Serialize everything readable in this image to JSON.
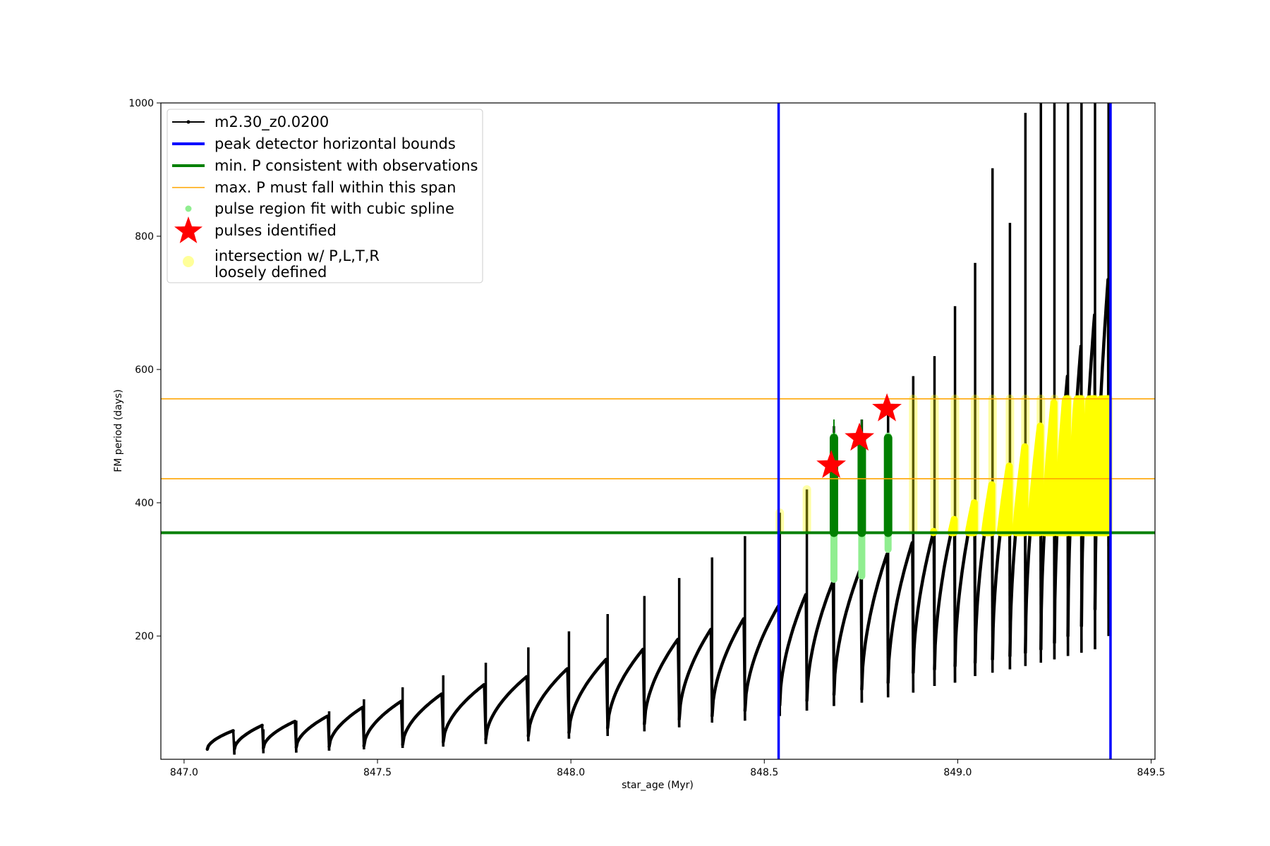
{
  "chart_data": {
    "type": "line",
    "title": "",
    "xlabel": "star_age (Myr)",
    "ylabel": "FM period (days)",
    "xlim": [
      846.94,
      849.51
    ],
    "ylim": [
      15,
      1000
    ],
    "xticks": [
      847.0,
      847.5,
      848.0,
      848.5,
      849.0,
      849.5
    ],
    "xtick_labels": [
      "847.0",
      "847.5",
      "848.0",
      "848.5",
      "849.0",
      "849.5"
    ],
    "yticks": [
      200,
      400,
      600,
      800,
      1000
    ],
    "ytick_labels": [
      "200",
      "400",
      "600",
      "800",
      "1000"
    ],
    "grid": false,
    "legend_position": "upper-left",
    "legend": [
      {
        "label": "m2.30_z0.0200",
        "style": "line-marker",
        "color": "#000000"
      },
      {
        "label": "peak detector horizontal bounds",
        "style": "thick-line",
        "color": "#0000ff"
      },
      {
        "label": "min. P consistent with observations",
        "style": "thick-line",
        "color": "#008000"
      },
      {
        "label": "max. P must fall within this span",
        "style": "thin-line",
        "color": "#ffa500"
      },
      {
        "label": "pulse region fit with cubic spline",
        "style": "dot",
        "color": "#90ee90"
      },
      {
        "label": "pulses identified",
        "style": "star",
        "color": "#ff0000"
      },
      {
        "label": "intersection w/ P,L,T,R",
        "label_line2": "loosely defined",
        "style": "big-dot",
        "color": "#ffff99"
      }
    ],
    "colors": {
      "main": "#000000",
      "bounds": "#0000ff",
      "min_p": "#008000",
      "max_p": "#ffa500",
      "spline": "#90ee90",
      "star": "#ff0000",
      "intersection": "#ffff00"
    },
    "vertical_bounds_x": [
      848.537,
      849.395
    ],
    "min_p": 355,
    "max_p_span": [
      436,
      556
    ],
    "pulses": [
      {
        "x0": 847.06,
        "x1": 847.13,
        "base": 30,
        "peak": 58,
        "spike": 42,
        "dip": 22
      },
      {
        "x0": 847.13,
        "x1": 847.205,
        "base": 30,
        "peak": 66,
        "spike": 60,
        "dip": 24
      },
      {
        "x0": 847.205,
        "x1": 847.29,
        "base": 32,
        "peak": 72,
        "spike": 73,
        "dip": 25
      },
      {
        "x0": 847.29,
        "x1": 847.375,
        "base": 33,
        "peak": 80,
        "spike": 87,
        "dip": 28
      },
      {
        "x0": 847.375,
        "x1": 847.465,
        "base": 34,
        "peak": 93,
        "spike": 105,
        "dip": 30
      },
      {
        "x0": 847.465,
        "x1": 847.565,
        "base": 35,
        "peak": 102,
        "spike": 123,
        "dip": 32
      },
      {
        "x0": 847.565,
        "x1": 847.67,
        "base": 37,
        "peak": 113,
        "spike": 141,
        "dip": 34
      },
      {
        "x0": 847.67,
        "x1": 847.78,
        "base": 41,
        "peak": 127,
        "spike": 160,
        "dip": 38
      },
      {
        "x0": 847.78,
        "x1": 847.89,
        "base": 45,
        "peak": 139,
        "spike": 183,
        "dip": 42
      },
      {
        "x0": 847.89,
        "x1": 847.995,
        "base": 50,
        "peak": 151,
        "spike": 207,
        "dip": 46
      },
      {
        "x0": 847.995,
        "x1": 848.095,
        "base": 55,
        "peak": 165,
        "spike": 233,
        "dip": 50
      },
      {
        "x0": 848.095,
        "x1": 848.19,
        "base": 62,
        "peak": 180,
        "spike": 260,
        "dip": 57
      },
      {
        "x0": 848.19,
        "x1": 848.28,
        "base": 68,
        "peak": 195,
        "spike": 287,
        "dip": 63
      },
      {
        "x0": 848.28,
        "x1": 848.365,
        "base": 75,
        "peak": 210,
        "spike": 318,
        "dip": 70
      },
      {
        "x0": 848.365,
        "x1": 848.45,
        "base": 80,
        "peak": 226,
        "spike": 350,
        "dip": 73
      },
      {
        "x0": 848.45,
        "x1": 848.54,
        "base": 88,
        "peak": 245,
        "spike": 385,
        "dip": 80
      },
      {
        "x0": 848.54,
        "x1": 848.61,
        "base": 96,
        "peak": 262,
        "spike": 420,
        "dip": 88
      },
      {
        "x0": 848.61,
        "x1": 848.68,
        "base": 103,
        "peak": 281,
        "spike": 515,
        "dip": 95
      },
      {
        "x0": 848.68,
        "x1": 848.752,
        "base": 112,
        "peak": 302,
        "spike": 525,
        "dip": 100
      },
      {
        "x0": 848.752,
        "x1": 848.82,
        "base": 120,
        "peak": 323,
        "spike": 540,
        "dip": 108
      },
      {
        "x0": 848.82,
        "x1": 848.885,
        "base": 130,
        "peak": 340,
        "spike": 590,
        "dip": 115
      },
      {
        "x0": 848.885,
        "x1": 848.94,
        "base": 145,
        "peak": 357,
        "spike": 620,
        "dip": 125
      },
      {
        "x0": 848.94,
        "x1": 848.993,
        "base": 150,
        "peak": 375,
        "spike": 695,
        "dip": 130
      },
      {
        "x0": 848.993,
        "x1": 849.045,
        "base": 155,
        "peak": 400,
        "spike": 760,
        "dip": 140
      },
      {
        "x0": 849.045,
        "x1": 849.09,
        "base": 160,
        "peak": 427,
        "spike": 902,
        "dip": 145
      },
      {
        "x0": 849.09,
        "x1": 849.135,
        "base": 165,
        "peak": 455,
        "spike": 820,
        "dip": 150
      },
      {
        "x0": 849.135,
        "x1": 849.175,
        "base": 170,
        "peak": 484,
        "spike": 985,
        "dip": 155
      },
      {
        "x0": 849.175,
        "x1": 849.215,
        "base": 175,
        "peak": 515,
        "spike": 1000,
        "dip": 160
      },
      {
        "x0": 849.215,
        "x1": 849.25,
        "base": 180,
        "peak": 550,
        "spike": 1000,
        "dip": 165
      },
      {
        "x0": 849.25,
        "x1": 849.285,
        "base": 190,
        "peak": 590,
        "spike": 1000,
        "dip": 170
      },
      {
        "x0": 849.285,
        "x1": 849.32,
        "base": 200,
        "peak": 635,
        "spike": 1000,
        "dip": 175
      },
      {
        "x0": 849.32,
        "x1": 849.355,
        "base": 215,
        "peak": 682,
        "spike": 1000,
        "dip": 180
      },
      {
        "x0": 849.355,
        "x1": 849.39,
        "base": 240,
        "peak": 735,
        "spike": 1000,
        "dip": 200
      }
    ],
    "spline_regions": [
      {
        "x": 848.68,
        "low": 285,
        "high": 500
      },
      {
        "x": 848.752,
        "low": 290,
        "high": 500
      },
      {
        "x": 848.82,
        "low": 330,
        "high": 500
      }
    ],
    "green_spikes": [
      {
        "x": 848.68,
        "low": 355,
        "high": 525
      },
      {
        "x": 848.752,
        "low": 355,
        "high": 525
      },
      {
        "x": 848.82,
        "low": 355,
        "high": 495
      }
    ],
    "stars": [
      {
        "x": 848.673,
        "y": 456
      },
      {
        "x": 848.746,
        "y": 497
      },
      {
        "x": 848.817,
        "y": 541
      }
    ],
    "intersection_columns": [
      {
        "x": 848.54,
        "low": 360,
        "high": 385
      },
      {
        "x": 848.61,
        "low": 360,
        "high": 420
      },
      {
        "x": 848.885,
        "low": 360,
        "high": 556
      },
      {
        "x": 848.94,
        "low": 360,
        "high": 556
      },
      {
        "x": 848.993,
        "low": 360,
        "high": 556
      },
      {
        "x": 849.045,
        "low": 360,
        "high": 556
      },
      {
        "x": 849.09,
        "low": 360,
        "high": 556
      },
      {
        "x": 849.135,
        "low": 360,
        "high": 556
      },
      {
        "x": 849.175,
        "low": 360,
        "high": 556
      },
      {
        "x": 849.215,
        "low": 360,
        "high": 556
      },
      {
        "x": 849.25,
        "low": 360,
        "high": 556
      },
      {
        "x": 849.285,
        "low": 360,
        "high": 556
      },
      {
        "x": 849.32,
        "low": 360,
        "high": 556
      },
      {
        "x": 849.355,
        "low": 360,
        "high": 556
      },
      {
        "x": 849.39,
        "low": 360,
        "high": 556
      }
    ]
  }
}
